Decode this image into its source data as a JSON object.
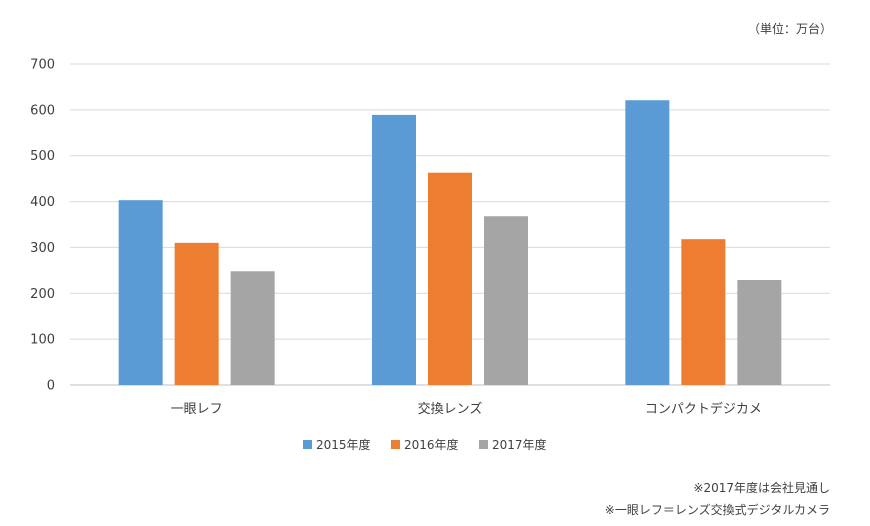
{
  "chart_data": {
    "type": "bar",
    "unit_label": "（単位：万台）",
    "categories": [
      "一眼レフ",
      "交換レンズ",
      "コンパクトデジカメ"
    ],
    "series": [
      {
        "name": "2015年度",
        "color": "#5b9bd5",
        "values": [
          403,
          589,
          621
        ]
      },
      {
        "name": "2016年度",
        "color": "#ed7d31",
        "values": [
          310,
          463,
          318
        ]
      },
      {
        "name": "2017年度",
        "color": "#a5a5a5",
        "values": [
          248,
          368,
          229
        ]
      }
    ],
    "ylim": [
      0,
      700
    ],
    "yticks": [
      0,
      100,
      200,
      300,
      400,
      500,
      600,
      700
    ],
    "grid": true,
    "gridline_color": "#d9d9d9",
    "legend_position": "bottom"
  },
  "notes": [
    "※2017年度は会社見通し",
    "※一眼レフ＝レンズ交換式デジタルカメラ"
  ]
}
